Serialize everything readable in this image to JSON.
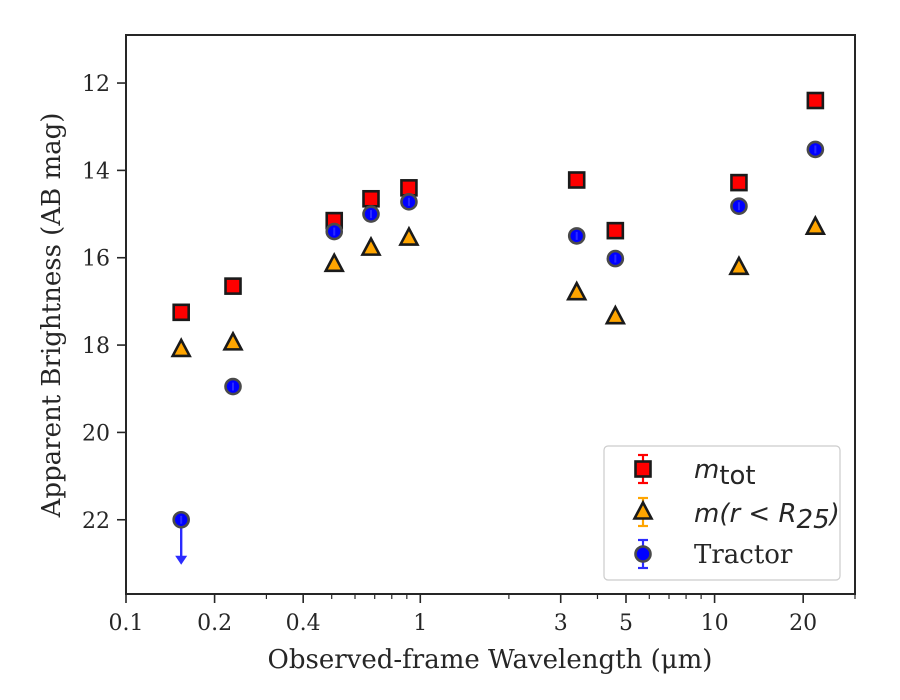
{
  "chart_data": {
    "type": "scatter",
    "xlabel": "Observed-frame Wavelength (μm)",
    "ylabel": "Apparent Brightness (AB mag)",
    "x_scale": "log",
    "xlim": [
      0.1,
      30
    ],
    "ylim": [
      23.7,
      10.9
    ],
    "y_inverted": true,
    "x_ticks": [
      0.1,
      0.2,
      0.4,
      1,
      3,
      5,
      10,
      20
    ],
    "x_tick_labels": [
      "0.1",
      "0.2",
      "0.4",
      "1",
      "3",
      "5",
      "10",
      "20"
    ],
    "y_ticks": [
      12,
      14,
      16,
      18,
      20,
      22
    ],
    "y_tick_labels": [
      "12",
      "14",
      "16",
      "18",
      "20",
      "22"
    ],
    "grid": false,
    "legend_position": "bottom-right",
    "series": [
      {
        "name": "m_tot",
        "marker": "square",
        "color": "#ff0000",
        "edge_color": "#1a1a1a",
        "error_color": "#ff0000",
        "points": [
          {
            "x": 0.154,
            "y": 17.25
          },
          {
            "x": 0.231,
            "y": 16.65
          },
          {
            "x": 0.51,
            "y": 15.15
          },
          {
            "x": 0.68,
            "y": 14.65
          },
          {
            "x": 0.915,
            "y": 14.4
          },
          {
            "x": 3.4,
            "y": 14.22
          },
          {
            "x": 4.6,
            "y": 15.38
          },
          {
            "x": 12.1,
            "y": 14.28
          },
          {
            "x": 22.0,
            "y": 12.4
          }
        ]
      },
      {
        "name": "m(r < R25)",
        "marker": "triangle",
        "color": "#ffa500",
        "edge_color": "#1a1a1a",
        "error_color": "#ffa500",
        "points": [
          {
            "x": 0.154,
            "y": 18.1
          },
          {
            "x": 0.231,
            "y": 17.95
          },
          {
            "x": 0.51,
            "y": 16.15
          },
          {
            "x": 0.68,
            "y": 15.78
          },
          {
            "x": 0.915,
            "y": 15.55
          },
          {
            "x": 3.4,
            "y": 16.8
          },
          {
            "x": 4.6,
            "y": 17.35
          },
          {
            "x": 12.1,
            "y": 16.22
          },
          {
            "x": 22.0,
            "y": 15.3
          }
        ]
      },
      {
        "name": "Tractor",
        "marker": "circle",
        "color": "#0000ff",
        "edge_color": "#4a4a4a",
        "error_color": "#2b2bff",
        "points": [
          {
            "x": 0.154,
            "y": 22.0,
            "upper_limit": true
          },
          {
            "x": 0.231,
            "y": 18.95
          },
          {
            "x": 0.51,
            "y": 15.4
          },
          {
            "x": 0.68,
            "y": 15.0
          },
          {
            "x": 0.915,
            "y": 14.72
          },
          {
            "x": 3.4,
            "y": 15.5
          },
          {
            "x": 4.6,
            "y": 16.02
          },
          {
            "x": 12.1,
            "y": 14.82
          },
          {
            "x": 22.0,
            "y": 13.52
          }
        ]
      }
    ]
  },
  "legend": {
    "items": [
      {
        "main": "m",
        "sub": "tot",
        "suffix": ""
      },
      {
        "main": "m(r < R",
        "sub": "25",
        "suffix": ")"
      },
      {
        "main": "Tractor",
        "sub": "",
        "suffix": ""
      }
    ]
  }
}
